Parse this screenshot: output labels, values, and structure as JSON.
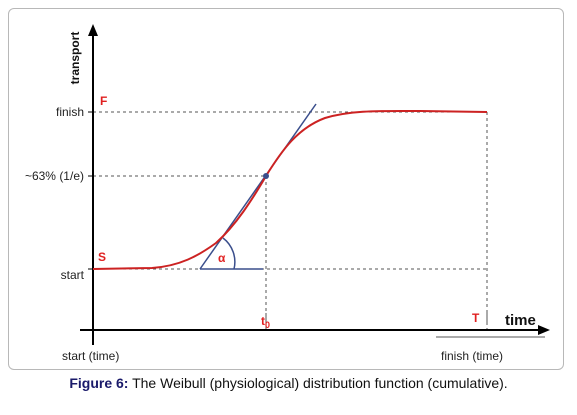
{
  "axes": {
    "y_title": "transport",
    "x_title": "time",
    "y_labels": {
      "finish": "finish",
      "mid": "~63% (1/e)",
      "start": "start"
    },
    "x_labels": {
      "start": "start (time)",
      "finish": "finish (time)"
    }
  },
  "markers": {
    "F": "F",
    "S": "S",
    "t0_base": "t",
    "t0_sub": "0",
    "T": "T",
    "alpha": "α"
  },
  "caption": {
    "label": "Figure 6:",
    "text": " The Weibull (physiological) distribution function (cumulative)."
  },
  "colors": {
    "curve": "#cc2222",
    "tangent": "#3a4e8c",
    "guides": "#555555",
    "marker_text": "#e02020"
  }
}
